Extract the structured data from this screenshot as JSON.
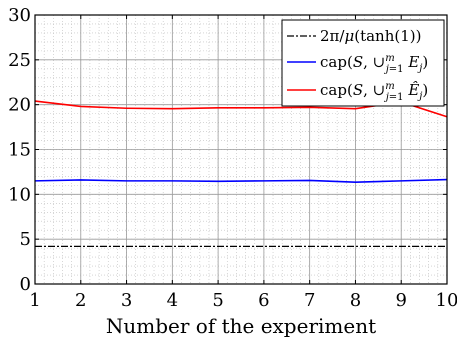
{
  "chart_data": {
    "type": "line",
    "title": "",
    "xlabel": "Number of the experiment",
    "ylabel": "",
    "xlim": [
      1,
      10
    ],
    "ylim": [
      0,
      30
    ],
    "x": [
      1,
      2,
      3,
      4,
      5,
      6,
      7,
      8,
      9,
      10
    ],
    "xticks": [
      "1",
      "2",
      "3",
      "4",
      "5",
      "6",
      "7",
      "8",
      "9",
      "10"
    ],
    "yticks": [
      "0",
      "5",
      "10",
      "15",
      "20",
      "25",
      "30"
    ],
    "grid": true,
    "minor_grid": true,
    "legend_position": "top-right",
    "series": [
      {
        "name": "2π/μ(tanh(1))",
        "style": "dashdot",
        "color": "#000000",
        "values": [
          4.2,
          4.2,
          4.2,
          4.2,
          4.2,
          4.2,
          4.2,
          4.2,
          4.2,
          4.2
        ]
      },
      {
        "name": "cap(S, ∪_{j=1}^{m} E_j)",
        "style": "solid",
        "color": "#0000ff",
        "values": [
          11.5,
          11.6,
          11.5,
          11.5,
          11.45,
          11.5,
          11.55,
          11.35,
          11.5,
          11.65
        ]
      },
      {
        "name": "cap(S, ∪_{j=1}^{m} Ê_j)",
        "style": "solid",
        "color": "#ff0000",
        "values": [
          20.4,
          19.8,
          19.6,
          19.55,
          19.65,
          19.65,
          19.7,
          19.55,
          20.3,
          18.65
        ]
      }
    ]
  }
}
